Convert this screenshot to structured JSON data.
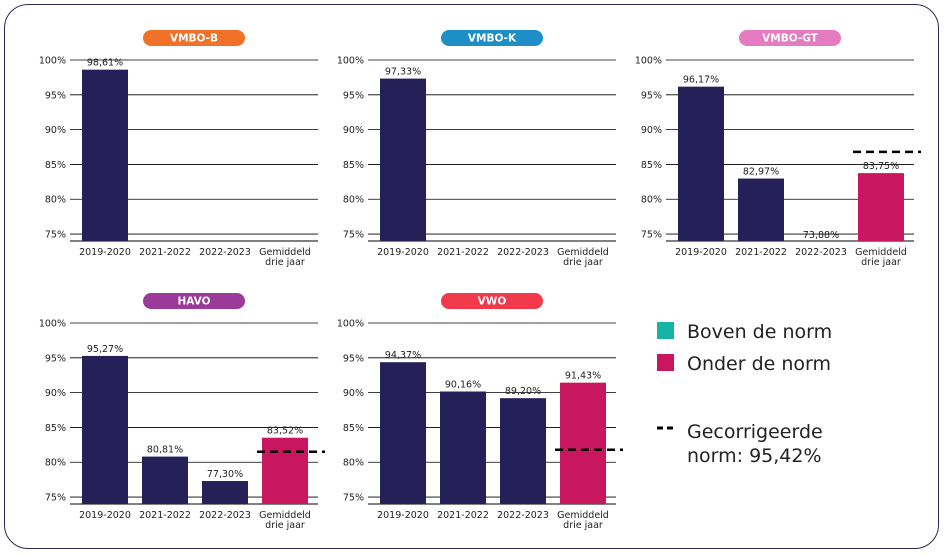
{
  "colors": {
    "bar": "#262059",
    "highlight": "#c8175e",
    "above_norm": "#17b3a3",
    "gridline": "#000000"
  },
  "chart_data": [
    {
      "type": "bar",
      "title": "VMBO-B",
      "title_color": "#f07127",
      "categories": [
        "2019-2020",
        "2021-2022",
        "2022-2023",
        "Gemiddeld drie jaar"
      ],
      "values": [
        98.61,
        null,
        null,
        null
      ],
      "labels": [
        "98,61%",
        "",
        "",
        ""
      ],
      "colors": [
        "bar",
        "bar",
        "bar",
        "bar"
      ],
      "ylim": [
        74,
        100
      ],
      "yticks": [
        75,
        80,
        85,
        90,
        95,
        100
      ],
      "norm": null
    },
    {
      "type": "bar",
      "title": "VMBO-K",
      "title_color": "#1e8fc6",
      "categories": [
        "2019-2020",
        "2021-2022",
        "2022-2023",
        "Gemiddeld drie jaar"
      ],
      "values": [
        97.33,
        null,
        null,
        null
      ],
      "labels": [
        "97,33%",
        "",
        "",
        ""
      ],
      "colors": [
        "bar",
        "bar",
        "bar",
        "bar"
      ],
      "ylim": [
        74,
        100
      ],
      "yticks": [
        75,
        80,
        85,
        90,
        95,
        100
      ],
      "norm": null
    },
    {
      "type": "bar",
      "title": "VMBO-GT",
      "title_color": "#e57bc0",
      "categories": [
        "2019-2020",
        "2021-2022",
        "2022-2023",
        "Gemiddeld drie jaar"
      ],
      "values": [
        96.17,
        82.97,
        73.88,
        83.75
      ],
      "labels": [
        "96,17%",
        "82,97%",
        "73,88%",
        "83,75%"
      ],
      "colors": [
        "bar",
        "bar",
        "bar",
        "highlight"
      ],
      "ylim": [
        74,
        100
      ],
      "yticks": [
        75,
        80,
        85,
        90,
        95,
        100
      ],
      "norm": 86.8
    },
    {
      "type": "bar",
      "title": "HAVO",
      "title_color": "#9b3a98",
      "categories": [
        "2019-2020",
        "2021-2022",
        "2022-2023",
        "Gemiddeld drie jaar"
      ],
      "values": [
        95.27,
        80.81,
        77.3,
        83.52
      ],
      "labels": [
        "95,27%",
        "80,81%",
        "77,30%",
        "83,52%"
      ],
      "colors": [
        "bar",
        "bar",
        "bar",
        "highlight"
      ],
      "ylim": [
        74,
        100
      ],
      "yticks": [
        75,
        80,
        85,
        90,
        95,
        100
      ],
      "norm": 81.5
    },
    {
      "type": "bar",
      "title": "VWO",
      "title_color": "#f0394a",
      "categories": [
        "2019-2020",
        "2021-2022",
        "2022-2023",
        "Gemiddeld drie jaar"
      ],
      "values": [
        94.37,
        90.16,
        89.2,
        91.43
      ],
      "labels": [
        "94,37%",
        "90,16%",
        "89,20%",
        "91,43%"
      ],
      "colors": [
        "bar",
        "bar",
        "bar",
        "highlight"
      ],
      "ylim": [
        74,
        100
      ],
      "yticks": [
        75,
        80,
        85,
        90,
        95,
        100
      ],
      "norm": 81.8
    }
  ],
  "legend": {
    "above_norm": "Boven de norm",
    "below_norm": "Onder de norm",
    "norm_line_1": "Gecorrigeerde",
    "norm_line_2": "norm: 95,42%"
  }
}
